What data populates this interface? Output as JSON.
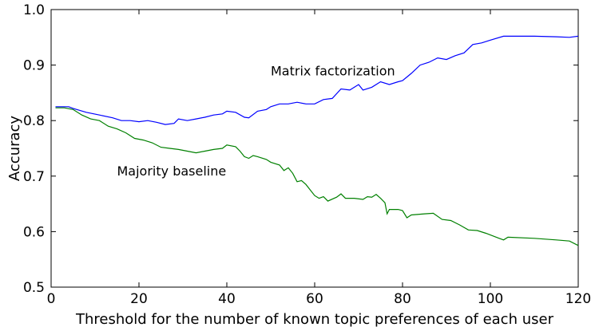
{
  "chart_data": {
    "type": "line",
    "title": "",
    "xlabel": "Threshold for the number of known topic preferences of each user",
    "ylabel": "Accuracy",
    "xlim": [
      0,
      120
    ],
    "ylim": [
      0.5,
      1.0
    ],
    "x_ticks": [
      "0",
      "20",
      "40",
      "60",
      "80",
      "100",
      "120"
    ],
    "y_ticks": [
      "0.5",
      "0.6",
      "0.7",
      "0.8",
      "0.9",
      "1.0"
    ],
    "grid": false,
    "legend": "none",
    "series": [
      {
        "name": "Matrix factorization",
        "color": "#0000ff",
        "label_anchor": {
          "x": 50,
          "y": 0.89
        },
        "points": [
          [
            1,
            0.825
          ],
          [
            2,
            0.825
          ],
          [
            4,
            0.825
          ],
          [
            5,
            0.822
          ],
          [
            8,
            0.815
          ],
          [
            11,
            0.81
          ],
          [
            14,
            0.805
          ],
          [
            16,
            0.8
          ],
          [
            18,
            0.8
          ],
          [
            20,
            0.798
          ],
          [
            22,
            0.8
          ],
          [
            24,
            0.797
          ],
          [
            26,
            0.793
          ],
          [
            28,
            0.795
          ],
          [
            29,
            0.803
          ],
          [
            31,
            0.8
          ],
          [
            33,
            0.803
          ],
          [
            35,
            0.806
          ],
          [
            37,
            0.81
          ],
          [
            39,
            0.812
          ],
          [
            40,
            0.817
          ],
          [
            42,
            0.815
          ],
          [
            44,
            0.806
          ],
          [
            45,
            0.805
          ],
          [
            47,
            0.817
          ],
          [
            49,
            0.82
          ],
          [
            50,
            0.825
          ],
          [
            52,
            0.83
          ],
          [
            54,
            0.83
          ],
          [
            56,
            0.833
          ],
          [
            58,
            0.83
          ],
          [
            60,
            0.83
          ],
          [
            62,
            0.838
          ],
          [
            64,
            0.84
          ],
          [
            66,
            0.857
          ],
          [
            68,
            0.855
          ],
          [
            70,
            0.865
          ],
          [
            71,
            0.855
          ],
          [
            73,
            0.86
          ],
          [
            75,
            0.87
          ],
          [
            77,
            0.865
          ],
          [
            79,
            0.87
          ],
          [
            80,
            0.872
          ],
          [
            82,
            0.885
          ],
          [
            84,
            0.9
          ],
          [
            86,
            0.905
          ],
          [
            88,
            0.913
          ],
          [
            90,
            0.91
          ],
          [
            92,
            0.917
          ],
          [
            94,
            0.922
          ],
          [
            96,
            0.937
          ],
          [
            98,
            0.94
          ],
          [
            100,
            0.945
          ],
          [
            103,
            0.952
          ],
          [
            110,
            0.952
          ],
          [
            115,
            0.951
          ],
          [
            118,
            0.95
          ],
          [
            120,
            0.952
          ]
        ]
      },
      {
        "name": "Majority baseline",
        "color": "#008000",
        "label_anchor": {
          "x": 15,
          "y": 0.71
        },
        "points": [
          [
            1,
            0.823
          ],
          [
            3,
            0.823
          ],
          [
            5,
            0.82
          ],
          [
            7,
            0.81
          ],
          [
            9,
            0.803
          ],
          [
            11,
            0.8
          ],
          [
            13,
            0.79
          ],
          [
            15,
            0.785
          ],
          [
            17,
            0.778
          ],
          [
            19,
            0.768
          ],
          [
            21,
            0.765
          ],
          [
            23,
            0.76
          ],
          [
            25,
            0.752
          ],
          [
            27,
            0.75
          ],
          [
            29,
            0.748
          ],
          [
            31,
            0.745
          ],
          [
            33,
            0.742
          ],
          [
            35,
            0.745
          ],
          [
            37,
            0.748
          ],
          [
            39,
            0.75
          ],
          [
            40,
            0.756
          ],
          [
            42,
            0.753
          ],
          [
            43,
            0.745
          ],
          [
            44,
            0.735
          ],
          [
            45,
            0.732
          ],
          [
            46,
            0.737
          ],
          [
            47,
            0.735
          ],
          [
            49,
            0.73
          ],
          [
            50,
            0.725
          ],
          [
            52,
            0.72
          ],
          [
            53,
            0.71
          ],
          [
            54,
            0.715
          ],
          [
            55,
            0.705
          ],
          [
            56,
            0.69
          ],
          [
            57,
            0.692
          ],
          [
            58,
            0.685
          ],
          [
            59,
            0.675
          ],
          [
            60,
            0.665
          ],
          [
            61,
            0.66
          ],
          [
            62,
            0.663
          ],
          [
            63,
            0.655
          ],
          [
            65,
            0.662
          ],
          [
            66,
            0.668
          ],
          [
            67,
            0.66
          ],
          [
            69,
            0.66
          ],
          [
            71,
            0.658
          ],
          [
            72,
            0.663
          ],
          [
            73,
            0.662
          ],
          [
            74,
            0.667
          ],
          [
            75,
            0.66
          ],
          [
            76,
            0.652
          ],
          [
            76.5,
            0.632
          ],
          [
            77,
            0.64
          ],
          [
            79,
            0.64
          ],
          [
            80,
            0.638
          ],
          [
            81,
            0.625
          ],
          [
            82,
            0.63
          ],
          [
            85,
            0.632
          ],
          [
            87,
            0.633
          ],
          [
            89,
            0.622
          ],
          [
            91,
            0.62
          ],
          [
            93,
            0.612
          ],
          [
            95,
            0.603
          ],
          [
            97,
            0.602
          ],
          [
            99,
            0.597
          ],
          [
            102,
            0.588
          ],
          [
            103,
            0.585
          ],
          [
            104,
            0.59
          ],
          [
            110,
            0.588
          ],
          [
            115,
            0.585
          ],
          [
            118,
            0.583
          ],
          [
            120,
            0.575
          ]
        ]
      }
    ]
  }
}
